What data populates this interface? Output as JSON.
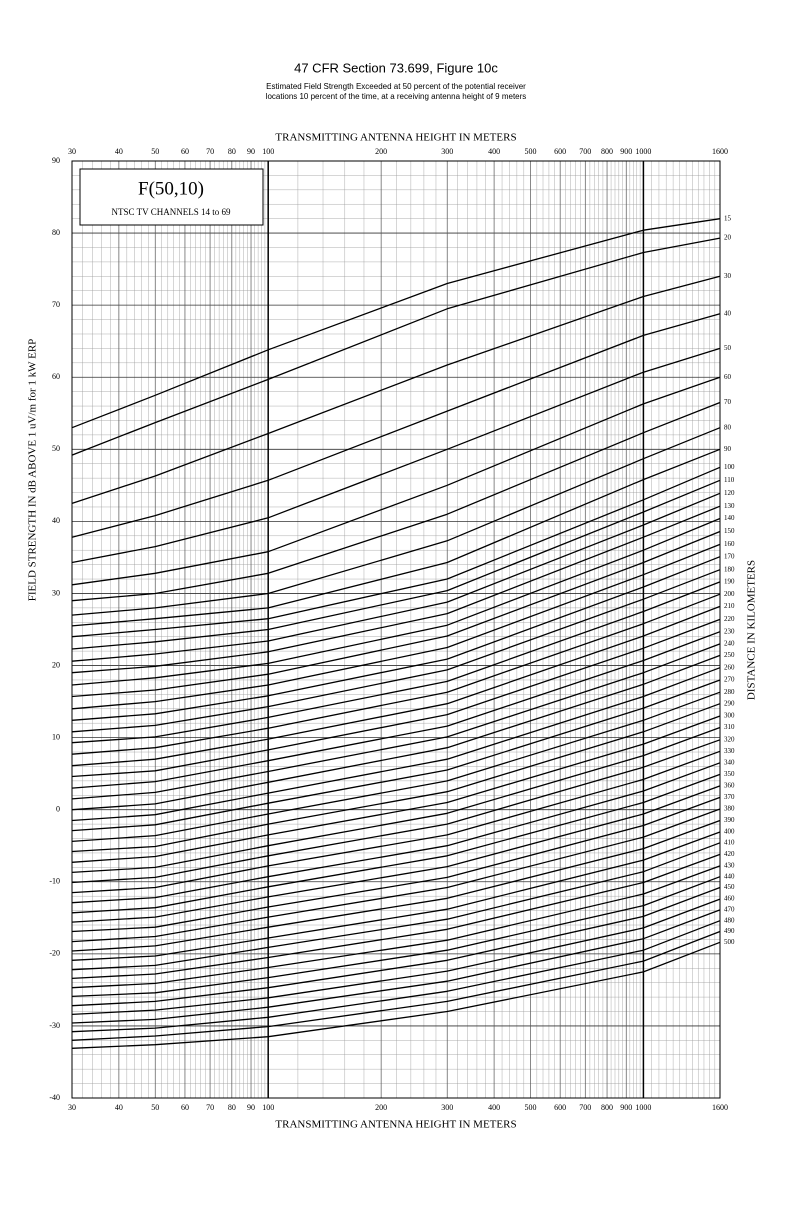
{
  "chart_data": {
    "type": "line",
    "title": "47 CFR Section 73.699, Figure 10c",
    "subtitle": [
      "Estimated Field Strength Exceeded at 50 percent of the potential receiver",
      "locations 10 percent of the time, at a receiving antenna height of 9 meters"
    ],
    "xlabel": "TRANSMITTING ANTENNA HEIGHT IN METERS",
    "ylabel": "FIELD STRENGTH IN dB ABOVE 1 uV/m for 1 kW ERP",
    "y2label": "DISTANCE IN KILOMETERS",
    "annotations": [
      "F(50,10)",
      "NTSC TV CHANNELS 14 to 69"
    ],
    "x_log": true,
    "grid": true,
    "color": "#000000",
    "xlim": [
      30,
      1600
    ],
    "ylim": [
      -40,
      90
    ],
    "xticks": [
      30,
      40,
      50,
      60,
      70,
      80,
      90,
      100,
      200,
      300,
      400,
      500,
      600,
      700,
      800,
      900,
      1000,
      1600
    ],
    "xminorticks": [
      32,
      34,
      36,
      38,
      42,
      44,
      46,
      48,
      52,
      54,
      56,
      58,
      62,
      64,
      66,
      68,
      72,
      74,
      76,
      78,
      82,
      84,
      86,
      88,
      92,
      94,
      96,
      98,
      120,
      140,
      160,
      180,
      220,
      240,
      260,
      280,
      320,
      340,
      360,
      380,
      420,
      440,
      460,
      480,
      520,
      540,
      560,
      580,
      620,
      640,
      660,
      680,
      720,
      740,
      760,
      780,
      820,
      840,
      860,
      880,
      920,
      940,
      960,
      980,
      1050,
      1100,
      1150,
      1200,
      1250,
      1300,
      1350,
      1400,
      1450,
      1500,
      1550
    ],
    "yticks": [
      -40,
      -30,
      -20,
      -10,
      0,
      10,
      20,
      30,
      40,
      50,
      60,
      70,
      80,
      90
    ],
    "yminorticks": [
      -38,
      -36,
      -34,
      -32,
      -28,
      -26,
      -24,
      -22,
      -18,
      -16,
      -14,
      -12,
      -8,
      -6,
      -4,
      -2,
      2,
      4,
      6,
      8,
      12,
      14,
      16,
      18,
      22,
      24,
      26,
      28,
      32,
      34,
      36,
      38,
      42,
      44,
      46,
      48,
      52,
      54,
      56,
      58,
      62,
      64,
      66,
      68,
      72,
      74,
      76,
      78,
      82,
      84,
      86,
      88
    ],
    "x": [
      30,
      50,
      100,
      300,
      1000,
      1600
    ],
    "series": [
      {
        "name": "15",
        "values": [
          53,
          57.5,
          63.8,
          73,
          80.4,
          82
        ]
      },
      {
        "name": "20",
        "values": [
          49.2,
          53.7,
          59.7,
          69.5,
          77.3,
          79.3
        ]
      },
      {
        "name": "30",
        "values": [
          42.5,
          46.3,
          52.2,
          61.7,
          71.2,
          74
        ]
      },
      {
        "name": "40",
        "values": [
          37.8,
          40.8,
          45.7,
          55.3,
          65.8,
          68.8
        ]
      },
      {
        "name": "50",
        "values": [
          34.3,
          36.5,
          40.5,
          50,
          60.7,
          64
        ]
      },
      {
        "name": "60",
        "values": [
          31.2,
          32.8,
          35.8,
          45,
          56.3,
          60
        ]
      },
      {
        "name": "70",
        "values": [
          29,
          30,
          32.8,
          41,
          52.3,
          56.5
        ]
      },
      {
        "name": "80",
        "values": [
          27,
          28,
          30,
          37.3,
          48.7,
          53
        ]
      },
      {
        "name": "90",
        "values": [
          25.5,
          26.5,
          28,
          34.3,
          45.8,
          50
        ]
      },
      {
        "name": "100",
        "values": [
          24,
          25,
          26.5,
          32,
          43,
          47.5
        ]
      },
      {
        "name": "110",
        "values": [
          22.3,
          23.3,
          25.0,
          30.4,
          41.3,
          45.7
        ]
      },
      {
        "name": "120",
        "values": [
          20.6,
          21.6,
          23.4,
          28.8,
          39.5,
          43.9
        ]
      },
      {
        "name": "130",
        "values": [
          19.0,
          19.9,
          21.9,
          27.2,
          37.8,
          42.1
        ]
      },
      {
        "name": "140",
        "values": [
          17.3,
          18.3,
          20.3,
          25.6,
          36.0,
          40.4
        ]
      },
      {
        "name": "150",
        "values": [
          15.7,
          16.6,
          18.8,
          24.1,
          34.3,
          38.6
        ]
      },
      {
        "name": "160",
        "values": [
          14.0,
          15.0,
          17.3,
          22.5,
          32.6,
          36.8
        ]
      },
      {
        "name": "170",
        "values": [
          12.4,
          13.3,
          15.8,
          20.9,
          30.9,
          35.1
        ]
      },
      {
        "name": "180",
        "values": [
          10.8,
          11.7,
          14.3,
          19.4,
          29.2,
          33.3
        ]
      },
      {
        "name": "190",
        "values": [
          9.3,
          10.1,
          12.8,
          17.8,
          27.5,
          31.6
        ]
      },
      {
        "name": "200",
        "values": [
          7.7,
          8.6,
          11.3,
          16.3,
          25.8,
          29.9
        ]
      },
      {
        "name": "210",
        "values": [
          6.1,
          7.0,
          9.8,
          14.7,
          24.1,
          28.2
        ]
      },
      {
        "name": "220",
        "values": [
          4.6,
          5.4,
          8.3,
          13.2,
          22.4,
          26.4
        ]
      },
      {
        "name": "230",
        "values": [
          3.0,
          3.9,
          6.8,
          11.6,
          20.7,
          24.7
        ]
      },
      {
        "name": "240",
        "values": [
          1.5,
          2.4,
          5.3,
          10.1,
          19.0,
          23.0
        ]
      },
      {
        "name": "250",
        "values": [
          0.0,
          0.8,
          3.8,
          8.6,
          17.4,
          21.4
        ]
      },
      {
        "name": "260",
        "values": [
          -1.5,
          -0.7,
          2.3,
          7.0,
          15.7,
          19.7
        ]
      },
      {
        "name": "270",
        "values": [
          -2.9,
          -2.1,
          0.9,
          5.5,
          14.1,
          18.0
        ]
      },
      {
        "name": "280",
        "values": [
          -4.4,
          -3.6,
          -0.6,
          4.0,
          12.4,
          16.3
        ]
      },
      {
        "name": "290",
        "values": [
          -5.8,
          -5.1,
          -2.0,
          2.5,
          10.8,
          14.7
        ]
      },
      {
        "name": "300",
        "values": [
          -7.3,
          -6.5,
          -3.5,
          1.0,
          9.1,
          13.0
        ]
      },
      {
        "name": "310",
        "values": [
          -8.7,
          -8.0,
          -5.0,
          -0.5,
          7.5,
          11.4
        ]
      },
      {
        "name": "320",
        "values": [
          -10.1,
          -9.4,
          -6.4,
          -2.0,
          5.9,
          9.7
        ]
      },
      {
        "name": "330",
        "values": [
          -11.5,
          -10.8,
          -7.8,
          -3.5,
          4.2,
          8.1
        ]
      },
      {
        "name": "340",
        "values": [
          -12.9,
          -12.2,
          -9.3,
          -5.0,
          2.6,
          6.5
        ]
      },
      {
        "name": "350",
        "values": [
          -14.3,
          -13.6,
          -10.7,
          -6.4,
          1.0,
          4.9
        ]
      },
      {
        "name": "360",
        "values": [
          -15.6,
          -14.9,
          -12.1,
          -7.9,
          -0.6,
          3.3
        ]
      },
      {
        "name": "370",
        "values": [
          -16.9,
          -16.3,
          -13.5,
          -9.4,
          -2.2,
          1.7
        ]
      },
      {
        "name": "380",
        "values": [
          -18.3,
          -17.6,
          -14.9,
          -10.8,
          -3.8,
          0.1
        ]
      },
      {
        "name": "390",
        "values": [
          -19.6,
          -18.9,
          -16.3,
          -12.3,
          -5.4,
          -1.5
        ]
      },
      {
        "name": "400",
        "values": [
          -20.9,
          -20.3,
          -17.8,
          -13.8,
          -7.0,
          -3.1
        ]
      },
      {
        "name": "410",
        "values": [
          -22.2,
          -21.6,
          -19.1,
          -15.2,
          -8.6,
          -4.6
        ]
      },
      {
        "name": "420",
        "values": [
          -23.4,
          -22.8,
          -20.5,
          -16.6,
          -10.1,
          -6.2
        ]
      },
      {
        "name": "430",
        "values": [
          -24.7,
          -24.1,
          -21.9,
          -18.1,
          -11.7,
          -7.8
        ]
      },
      {
        "name": "440",
        "values": [
          -25.9,
          -25.4,
          -23.3,
          -19.5,
          -13.3,
          -9.3
        ]
      },
      {
        "name": "450",
        "values": [
          -27.2,
          -26.6,
          -24.7,
          -20.9,
          -14.8,
          -10.8
        ]
      },
      {
        "name": "460",
        "values": [
          -28.4,
          -27.8,
          -26.1,
          -22.4,
          -16.4,
          -12.4
        ]
      },
      {
        "name": "470",
        "values": [
          -29.6,
          -29.1,
          -27.4,
          -23.8,
          -17.9,
          -13.9
        ]
      },
      {
        "name": "480",
        "values": [
          -30.8,
          -30.3,
          -28.8,
          -25.2,
          -19.5,
          -15.4
        ]
      },
      {
        "name": "490",
        "values": [
          -32.0,
          -31.4,
          -30.1,
          -26.6,
          -21.0,
          -16.9
        ]
      },
      {
        "name": "500",
        "values": [
          -33.1,
          -32.6,
          -31.5,
          -28.0,
          -22.5,
          -18.4
        ]
      }
    ]
  }
}
